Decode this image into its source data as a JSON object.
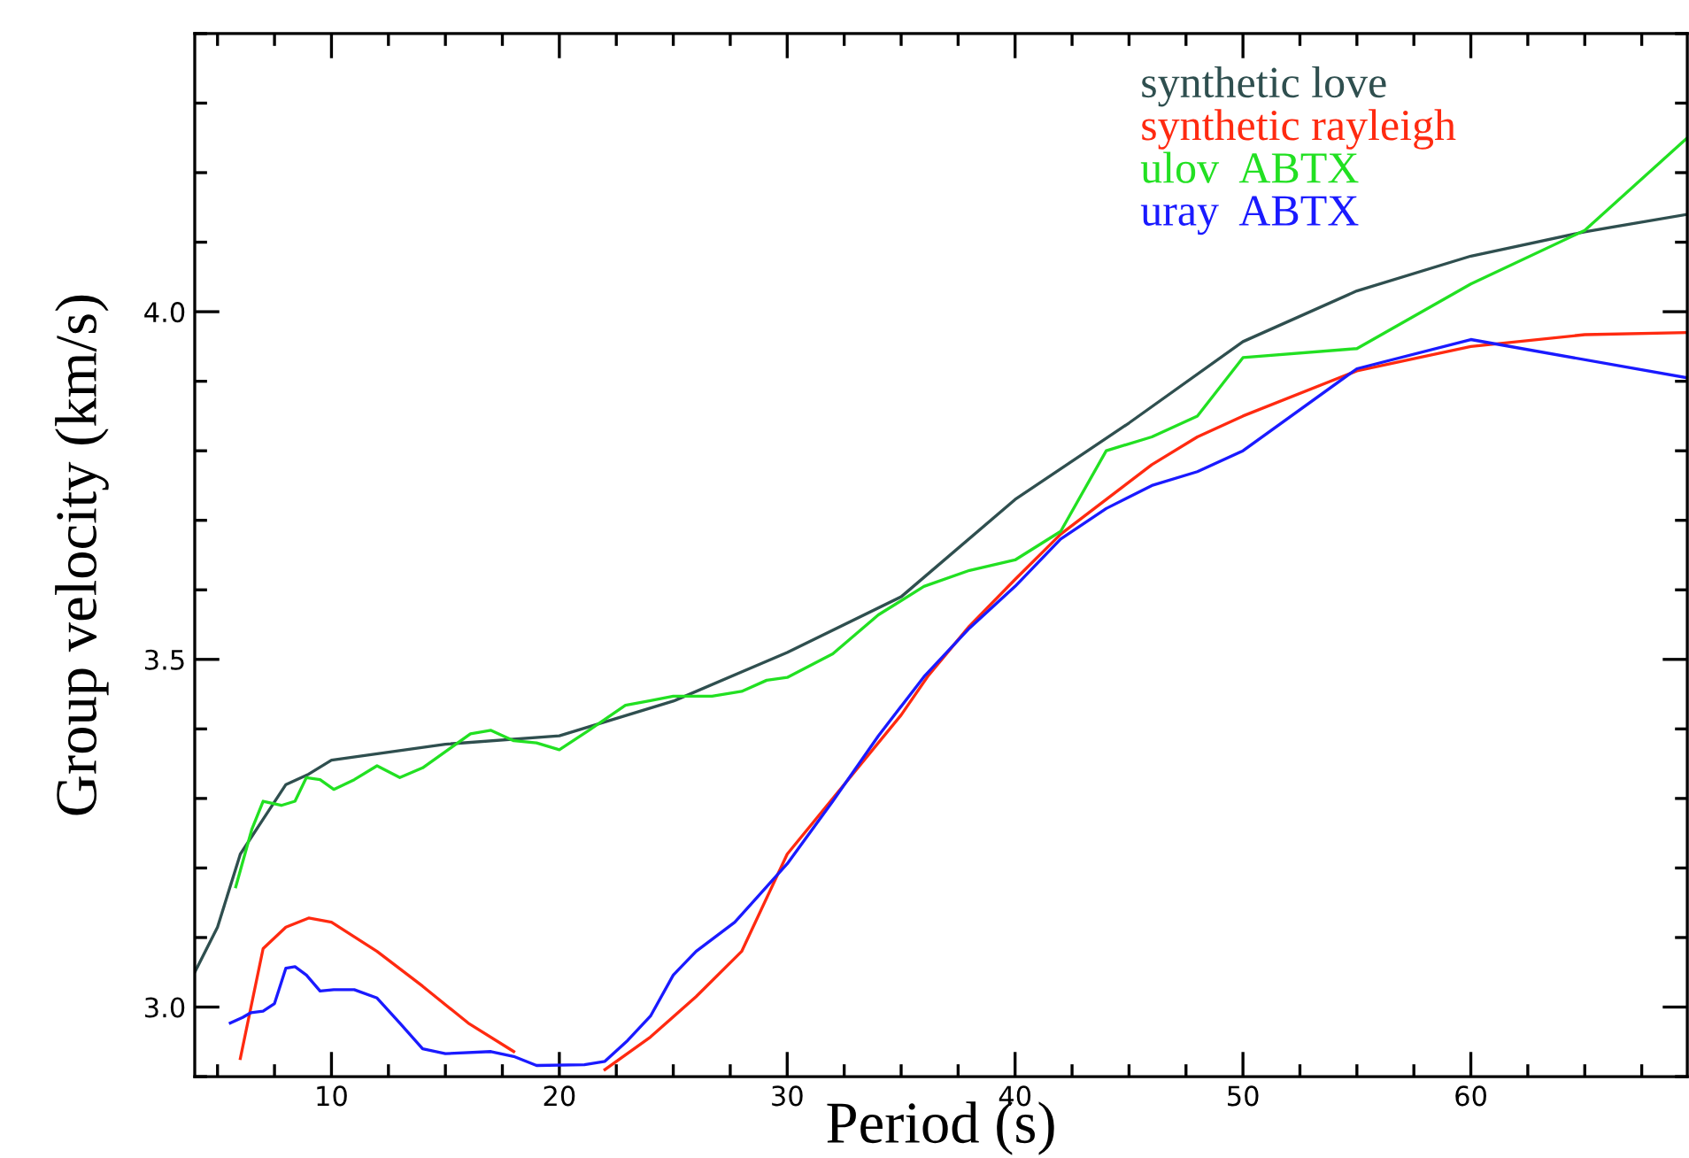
{
  "chart_data": {
    "type": "line",
    "xlabel": "Period (s)",
    "ylabel": "Group velocity (km/s)",
    "xlim": [
      4,
      69.5
    ],
    "ylim": [
      2.9,
      4.4
    ],
    "xticks": [
      10,
      20,
      30,
      40,
      50,
      60
    ],
    "yticks": [
      {
        "value": 3.0,
        "label": "3.0"
      },
      {
        "value": 3.5,
        "label": "3.5"
      },
      {
        "value": 4.0,
        "label": "4.0"
      }
    ],
    "grid": false,
    "legend": "top right",
    "marker": "none",
    "line_style": "solid",
    "series": [
      {
        "name": "synthetic love",
        "color": "#2f4f4f",
        "x": [
          4,
          5,
          6,
          7,
          8,
          9,
          10,
          15,
          20,
          25,
          30,
          35,
          40,
          45,
          50,
          55,
          60,
          65,
          69.5
        ],
        "values": [
          3.05,
          3.115,
          3.22,
          3.27,
          3.32,
          3.335,
          3.355,
          3.378,
          3.39,
          3.44,
          3.51,
          3.59,
          3.73,
          3.84,
          3.957,
          4.03,
          4.08,
          4.115,
          4.14
        ]
      },
      {
        "name": "synthetic rayleigh",
        "color": "#ff2a10",
        "x": [
          6,
          7,
          8,
          9,
          10,
          12,
          14,
          16,
          18,
          19.8,
          22,
          24,
          26,
          28,
          30,
          35,
          36.2,
          38,
          40,
          42,
          44,
          46,
          48,
          50,
          55,
          60,
          65,
          69.5
        ],
        "values": [
          2.926,
          3.084,
          3.115,
          3.128,
          3.122,
          3.08,
          3.03,
          2.977,
          2.936,
          null,
          2.91,
          2.957,
          3.015,
          3.08,
          3.22,
          3.42,
          3.477,
          3.548,
          3.615,
          3.68,
          3.73,
          3.78,
          3.82,
          3.85,
          3.915,
          3.95,
          3.967,
          3.97
        ]
      },
      {
        "name": "ulov  ABTX",
        "color": "#22e022",
        "x": [
          5.8,
          6.5,
          7,
          7.8,
          8.4,
          8.9,
          9.5,
          10.1,
          11,
          12,
          13,
          14,
          15.2,
          16.1,
          17,
          18,
          19,
          20,
          21.3,
          22.9,
          23.9,
          25,
          26.7,
          28,
          29.1,
          30,
          32,
          34,
          36,
          38,
          40,
          42,
          44,
          46,
          48,
          50,
          55,
          60,
          65,
          69.5
        ],
        "values": [
          3.173,
          3.255,
          3.296,
          3.29,
          3.296,
          3.33,
          3.327,
          3.313,
          3.327,
          3.347,
          3.33,
          3.344,
          3.372,
          3.393,
          3.398,
          3.383,
          3.38,
          3.37,
          3.398,
          3.434,
          3.44,
          3.447,
          3.447,
          3.454,
          3.47,
          3.474,
          3.508,
          3.564,
          3.605,
          3.628,
          3.643,
          3.684,
          3.8,
          3.82,
          3.85,
          3.934,
          3.947,
          4.04,
          4.117,
          4.25
        ]
      },
      {
        "name": "uray  ABTX",
        "color": "#1a1aff",
        "x": [
          5.56,
          6.1,
          6.47,
          7,
          7.5,
          8,
          8.4,
          8.9,
          9.5,
          10.1,
          11,
          12,
          13,
          14,
          15,
          17,
          18,
          19,
          21.1,
          22,
          23,
          24,
          25,
          26,
          27.7,
          30,
          32,
          34,
          36,
          38,
          40,
          42,
          44,
          46,
          48,
          50,
          55,
          60,
          69.5
        ],
        "values": [
          2.977,
          2.985,
          2.992,
          2.994,
          3.005,
          3.056,
          3.058,
          3.046,
          3.023,
          3.025,
          3.025,
          3.013,
          2.977,
          2.94,
          2.933,
          2.936,
          2.929,
          2.916,
          2.917,
          2.922,
          2.952,
          2.987,
          3.046,
          3.08,
          3.122,
          3.206,
          3.296,
          3.39,
          3.475,
          3.545,
          3.605,
          3.673,
          3.717,
          3.75,
          3.77,
          3.8,
          3.918,
          3.96,
          3.905
        ]
      }
    ]
  }
}
